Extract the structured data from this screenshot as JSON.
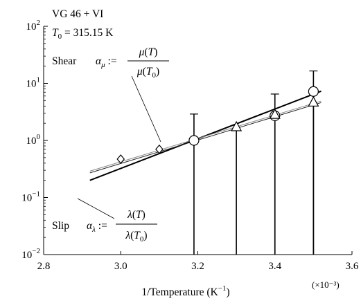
{
  "chart_data": {
    "type": "scatter",
    "xlabel": "1/Temperature (K⁻¹)",
    "x_multiplier": "(×10⁻³)",
    "ylabel": "",
    "xlim": [
      2.8,
      3.6
    ],
    "ylim": [
      0.01,
      100
    ],
    "yscale": "log",
    "x_ticks": [
      "2.8",
      "3.0",
      "3.2",
      "3.4",
      "3.6"
    ],
    "y_ticks": [
      {
        "base": "10",
        "exp": "−2"
      },
      {
        "base": "10",
        "exp": "−1"
      },
      {
        "base": "10",
        "exp": "0"
      },
      {
        "base": "10",
        "exp": "1"
      },
      {
        "base": "10",
        "exp": "2"
      }
    ],
    "header_lines": [
      "VG 46 + VI",
      "T0 = 315.15 K"
    ],
    "shear_label": "Shear",
    "slip_label": "Slip",
    "shear_formula": {
      "lhs": "αμ :=",
      "numerator": "μ(T)",
      "denominator": "μ(T0)"
    },
    "slip_formula": {
      "lhs": "αλ :=",
      "numerator": "λ(T)",
      "denominator": "λ(T0)"
    },
    "series": [
      {
        "marker": "diamond",
        "x": [
          3.0,
          3.1
        ],
        "y": [
          0.47,
          0.7
        ]
      },
      {
        "marker": "circle",
        "x": [
          3.19,
          3.4,
          3.5
        ],
        "y": [
          1.0,
          2.7,
          7.2
        ],
        "err_upper": [
          2.9,
          6.5,
          16.5
        ]
      },
      {
        "marker": "triangle",
        "x": [
          3.3,
          3.4,
          3.5
        ],
        "y": [
          1.7,
          2.8,
          4.6
        ],
        "err_upper": [
          null,
          null,
          null
        ]
      }
    ],
    "fit_lines": [
      {
        "style": "thick",
        "x": [
          2.92,
          3.52
        ],
        "y": [
          0.2,
          7.3
        ]
      },
      {
        "style": "thin-gray",
        "x": [
          2.92,
          3.52
        ],
        "y": [
          0.29,
          4.9
        ]
      },
      {
        "style": "thin-dark",
        "x": [
          2.92,
          3.52
        ],
        "y": [
          0.27,
          4.6
        ]
      }
    ]
  }
}
